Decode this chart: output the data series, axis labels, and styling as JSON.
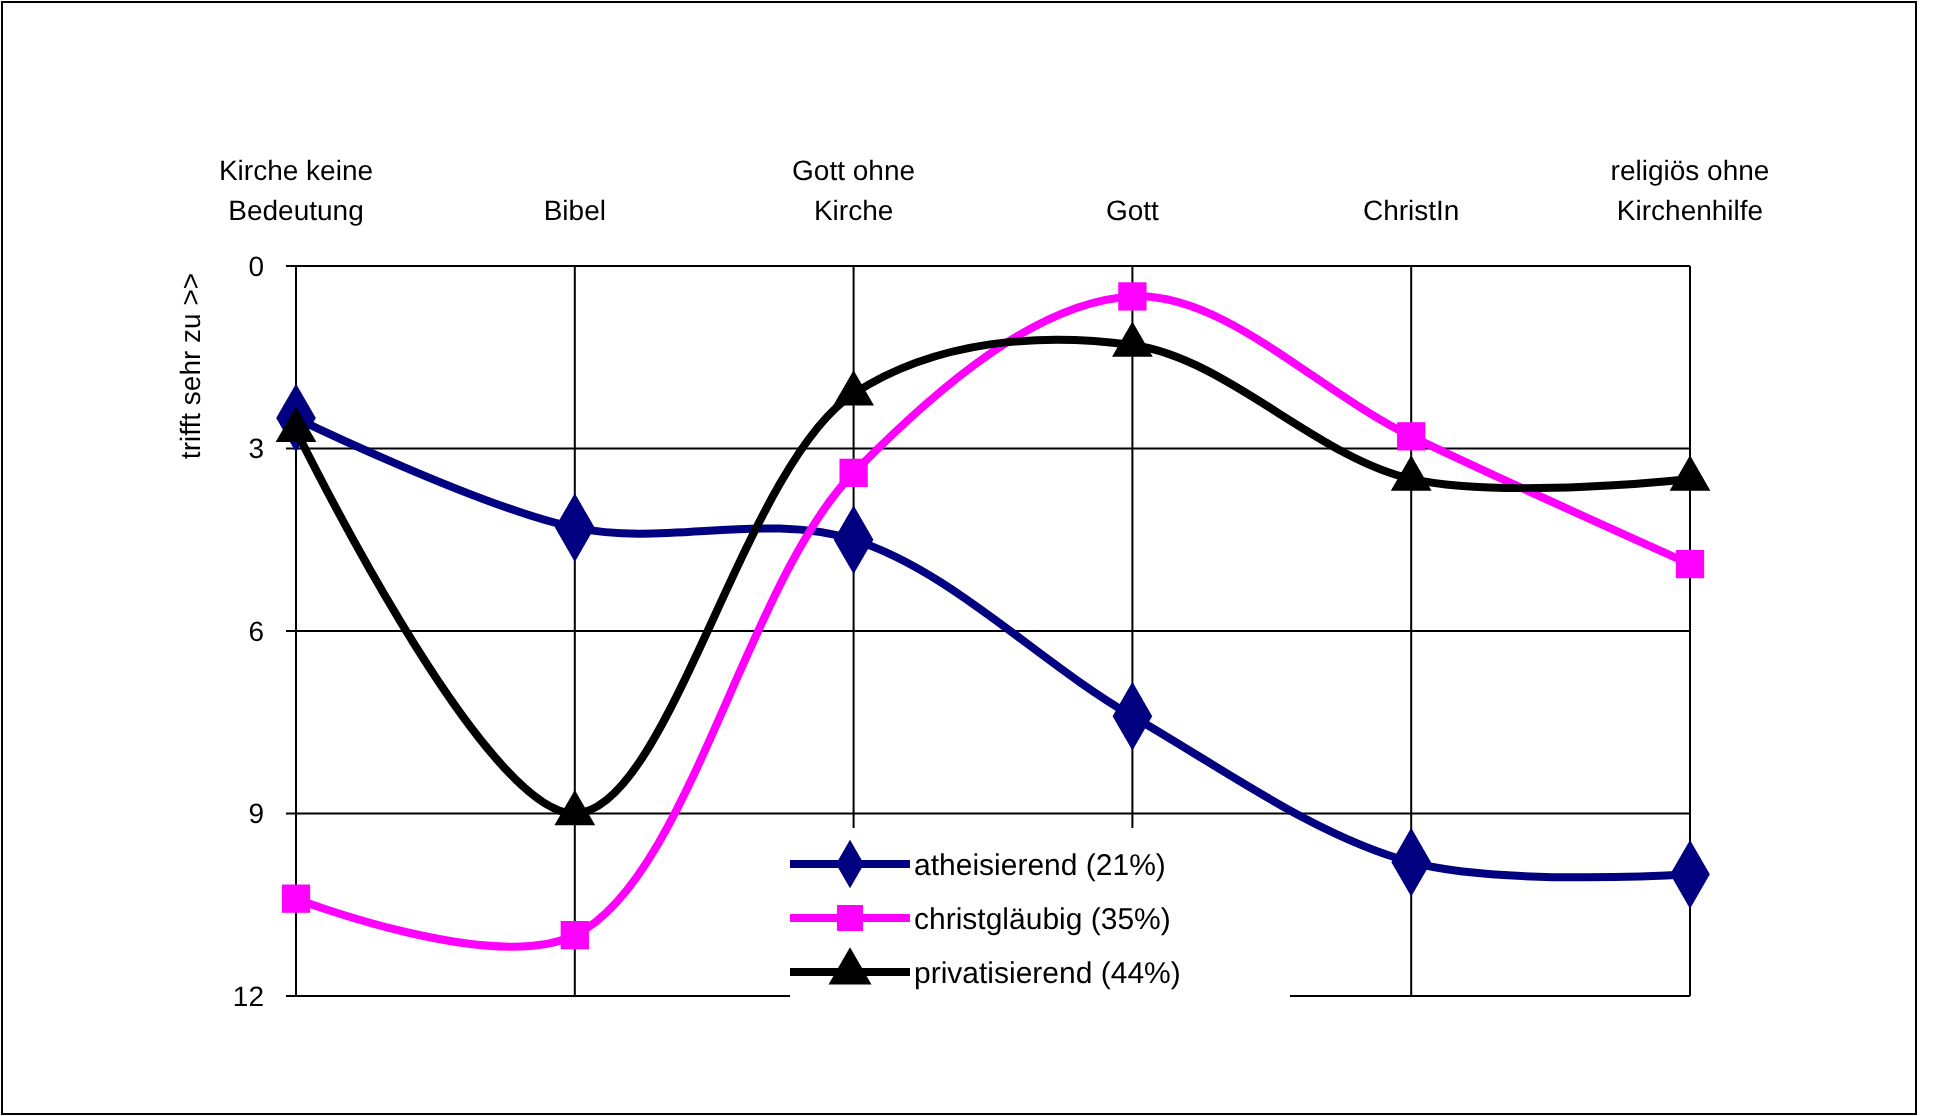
{
  "chart_data": {
    "type": "line",
    "ylabel": "trifft sehr zu >>",
    "categories": [
      "Kirche keine Bedeutung",
      "Bibel",
      "Gott ohne Kirche",
      "Gott",
      "ChristIn",
      "religiös ohne Kirchenhilfe"
    ],
    "ylim": [
      12,
      0
    ],
    "yticks": [
      0,
      3,
      6,
      9,
      12
    ],
    "grid": true,
    "legend": "bottom",
    "series": [
      {
        "name": "atheisierend (21%)",
        "color": "#000080",
        "marker": "diamond",
        "values": [
          2.5,
          4.3,
          4.5,
          7.4,
          9.8,
          10.0
        ]
      },
      {
        "name": "christgläubig (35%)",
        "color": "#ff00ff",
        "marker": "square",
        "values": [
          10.4,
          11.0,
          3.4,
          0.5,
          2.8,
          4.9
        ]
      },
      {
        "name": "privatisierend (44%)",
        "color": "#000000",
        "marker": "triangle",
        "values": [
          2.7,
          9.0,
          2.1,
          1.3,
          3.5,
          3.5
        ]
      }
    ]
  }
}
